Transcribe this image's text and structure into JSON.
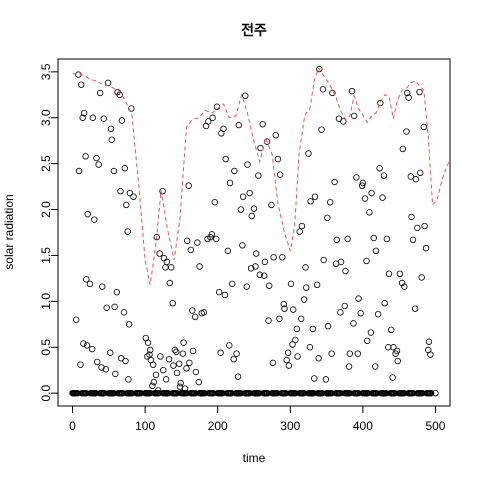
{
  "chart_data": {
    "type": "scatter",
    "title": "전주",
    "xlabel": "time",
    "ylabel": "solar radiation",
    "xlim": [
      -20,
      520
    ],
    "ylim": [
      -0.14,
      3.64
    ],
    "xticks": [
      0,
      100,
      200,
      300,
      400,
      500
    ],
    "xtick_labels": [
      "0",
      "100",
      "200",
      "300",
      "400",
      "500"
    ],
    "yticks": [
      0.0,
      0.5,
      1.0,
      1.5,
      2.0,
      2.5,
      3.0,
      3.5
    ],
    "ytick_labels": [
      "0.0",
      "0.5",
      "1.0",
      "1.5",
      "2.0",
      "2.5",
      "3.0",
      "3.5"
    ],
    "grid": false,
    "series": [
      {
        "kind": "points",
        "marker": "open-circle",
        "color": "#000000",
        "x": [
          8,
          12,
          16,
          18,
          21,
          28,
          33,
          38,
          43,
          49,
          54,
          58,
          62,
          65,
          68,
          72,
          76,
          79,
          81,
          84,
          9,
          14,
          19,
          24,
          30,
          36,
          41,
          47,
          53,
          57,
          61,
          66,
          71,
          74,
          78,
          5,
          11,
          15,
          20,
          27,
          34,
          40,
          46,
          52,
          59,
          67,
          73,
          77,
          101,
          104,
          106,
          108,
          110,
          112,
          115,
          118,
          121,
          124,
          126,
          128,
          130,
          133,
          136,
          138,
          141,
          144,
          147,
          149,
          152,
          155,
          158,
          160,
          163,
          166,
          169,
          172,
          175,
          178,
          103,
          107,
          111,
          116,
          120,
          125,
          129,
          134,
          139,
          143,
          148,
          153,
          157,
          161,
          165,
          170,
          174,
          181,
          184,
          187,
          190,
          193,
          196,
          199,
          202,
          205,
          208,
          211,
          214,
          217,
          220,
          223,
          226,
          229,
          232,
          235,
          238,
          241,
          244,
          247,
          250,
          253,
          256,
          259,
          262,
          265,
          268,
          271,
          274,
          277,
          280,
          186,
          192,
          198,
          204,
          210,
          216,
          222,
          228,
          234,
          240,
          246,
          252,
          258,
          264,
          270,
          276,
          283,
          286,
          289,
          292,
          295,
          298,
          301,
          304,
          307,
          310,
          313,
          316,
          319,
          322,
          325,
          328,
          331,
          334,
          337,
          340,
          343,
          346,
          349,
          352,
          355,
          358,
          285,
          291,
          297,
          303,
          309,
          315,
          321,
          327,
          333,
          339,
          345,
          351,
          357,
          361,
          364,
          367,
          370,
          373,
          376,
          379,
          382,
          385,
          388,
          391,
          394,
          397,
          400,
          403,
          406,
          409,
          412,
          415,
          418,
          421,
          424,
          427,
          430,
          433,
          436,
          439,
          442,
          445,
          448,
          363,
          369,
          375,
          381,
          387,
          393,
          399,
          405,
          411,
          417,
          423,
          429,
          435,
          441,
          447,
          451,
          454,
          457,
          460,
          463,
          466,
          469,
          472,
          475,
          478,
          481,
          484,
          487,
          490,
          493,
          455,
          461,
          467,
          473,
          479,
          485,
          491
        ],
        "y": [
          3.47,
          3.36,
          3.05,
          2.58,
          1.95,
          3.0,
          2.56,
          3.27,
          2.99,
          3.38,
          2.76,
          0.94,
          3.28,
          3.25,
          2.97,
          2.45,
          1.76,
          2.18,
          3.1,
          2.14,
          2.42,
          3.0,
          1.24,
          1.19,
          1.89,
          2.49,
          1.16,
          0.93,
          2.88,
          2.42,
          1.1,
          2.2,
          0.88,
          2.05,
          0.75,
          0.8,
          0.31,
          0.54,
          0.52,
          0.48,
          0.34,
          0.28,
          0.26,
          0.44,
          0.21,
          0.38,
          0.35,
          0.15,
          0.6,
          0.55,
          0.42,
          0.36,
          0.08,
          0.12,
          0.2,
          0.03,
          0.4,
          2.2,
          1.47,
          1.37,
          1.43,
          0.37,
          1.37,
          0.98,
          0.47,
          0.22,
          0.32,
          0.11,
          0.43,
          0.05,
          1.66,
          2.26,
          1.56,
          0.46,
          0.83,
          1.64,
          1.38,
          0.87,
          0.4,
          0.47,
          0.31,
          1.7,
          1.52,
          0.25,
          0.15,
          1.2,
          0.3,
          0.45,
          0.07,
          0.55,
          0.27,
          0.33,
          0.9,
          0.23,
          0.12,
          0.88,
          2.91,
          2.96,
          1.7,
          3.0,
          2.08,
          3.12,
          1.1,
          2.83,
          2.88,
          2.55,
          1.55,
          2.29,
          1.19,
          2.42,
          0.43,
          2.92,
          2.0,
          2.14,
          3.24,
          2.49,
          2.18,
          1.93,
          2.01,
          1.52,
          2.37,
          2.67,
          2.93,
          1.43,
          2.74,
          1.17,
          2.05,
          1.48,
          2.81,
          1.68,
          1.73,
          1.68,
          0.44,
          1.07,
          0.52,
          0.37,
          0.18,
          1.61,
          1.16,
          1.36,
          1.38,
          1.29,
          1.28,
          0.79,
          0.33,
          2.55,
          2.38,
          1.48,
          0.92,
          0.36,
          0.3,
          1.19,
          0.91,
          0.58,
          0.4,
          1.76,
          1.82,
          1.02,
          1.15,
          2.61,
          2.09,
          0.7,
          2.14,
          1.18,
          3.53,
          2.87,
          1.45,
          0.15,
          0.73,
          2.08,
          3.27,
          0.81,
          0.97,
          0.44,
          0.53,
          0.7,
          0.81,
          1.37,
          0.5,
          0.16,
          0.38,
          3.31,
          1.91,
          0.43,
          2.3,
          1.67,
          2.99,
          1.43,
          2.96,
          1.33,
          1.68,
          0.43,
          3.29,
          3.02,
          2.35,
          1.03,
          0.87,
          2.29,
          2.12,
          0.57,
          1.97,
          2.18,
          1.69,
          1.55,
          0.86,
          3.16,
          2.13,
          0.98,
          1.68,
          1.3,
          0.69,
          0.5,
          0.43,
          0.35,
          1.41,
          0.88,
          0.95,
          0.29,
          0.76,
          0.43,
          2.26,
          1.44,
          0.66,
          0.29,
          2.45,
          2.37,
          0.5,
          0.17,
          0.46,
          1.3,
          1.2,
          1.16,
          2.85,
          3.22,
          2.36,
          1.67,
          0.92,
          1.8,
          3.28,
          1.26,
          2.9,
          1.58,
          0.47,
          0.42,
          2.66,
          3.27,
          1.92,
          2.33,
          2.4,
          1.82,
          0.56
        ]
      },
      {
        "kind": "night-zeros",
        "marker": "open-circle",
        "color": "#000000",
        "x_start": 0,
        "x_end": 500,
        "step": 1,
        "y": 0
      },
      {
        "kind": "line",
        "style": "dashed",
        "color": "#e8515f",
        "x": [
          0,
          8,
          16,
          24,
          33,
          42,
          52,
          62,
          72,
          82,
          92,
          100,
          107,
          115,
          122,
          131,
          140,
          148,
          157,
          165,
          174,
          183,
          192,
          200,
          208,
          216,
          225,
          233,
          241,
          250,
          258,
          266,
          275,
          283,
          292,
          300,
          306,
          312,
          320,
          327,
          333,
          339,
          345,
          351,
          357,
          363,
          369,
          376,
          382,
          388,
          394,
          400,
          406,
          412,
          418,
          424,
          430,
          436,
          442,
          448,
          454,
          460,
          466,
          472,
          478,
          484,
          490,
          496,
          502,
          510,
          520
        ],
        "y": [
          3.48,
          3.48,
          3.46,
          3.42,
          3.4,
          3.36,
          3.34,
          3.3,
          3.2,
          3.02,
          2.2,
          1.45,
          1.18,
          1.63,
          2.21,
          1.78,
          1.45,
          1.9,
          2.9,
          2.98,
          3.0,
          3.08,
          3.05,
          3.1,
          3.15,
          3.0,
          3.02,
          3.25,
          3.05,
          2.74,
          2.52,
          2.78,
          2.6,
          2.06,
          1.75,
          1.55,
          1.82,
          2.6,
          3.03,
          3.1,
          3.4,
          3.54,
          3.47,
          3.4,
          3.32,
          3.22,
          3.08,
          2.98,
          3.02,
          3.24,
          3.1,
          3.03,
          2.95,
          3.02,
          3.05,
          3.17,
          3.25,
          3.23,
          2.99,
          3.2,
          3.3,
          3.32,
          3.38,
          3.4,
          3.35,
          3.3,
          2.8,
          2.05,
          2.1,
          2.35,
          2.55
        ]
      }
    ]
  }
}
